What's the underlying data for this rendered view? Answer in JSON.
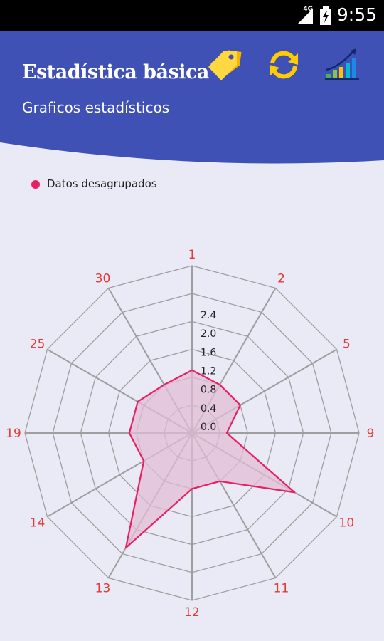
{
  "status_bar": {
    "network": "4G",
    "time": "9:55"
  },
  "header": {
    "title": "Estadística básica",
    "subtitle": "Graficos estadísticos",
    "color": "#3f51b5"
  },
  "toolbar": {
    "icons": [
      "tag-icon",
      "refresh-icon",
      "growth-chart-icon"
    ]
  },
  "legend": {
    "label": "Datos desagrupados",
    "color": "#e91e63"
  },
  "chart_data": {
    "type": "radar",
    "categories": [
      "1",
      "2",
      "5",
      "9",
      "10",
      "11",
      "12",
      "13",
      "14",
      "19",
      "25",
      "30"
    ],
    "series": [
      {
        "name": "Datos desagrupados",
        "values": [
          0.9,
          0.8,
          0.8,
          0.5,
          1.7,
          0.8,
          0.8,
          1.9,
          0.8,
          0.9,
          0.9,
          0.8
        ]
      }
    ],
    "r_ticks": [
      "0.0",
      "0.4",
      "0.8",
      "1.2",
      "1.6",
      "2.0",
      "2.4"
    ],
    "r_range": [
      0,
      2.4
    ],
    "line_color": "#e91e63",
    "fill_color": "#e0bcd5",
    "label_color": "#e53935"
  }
}
